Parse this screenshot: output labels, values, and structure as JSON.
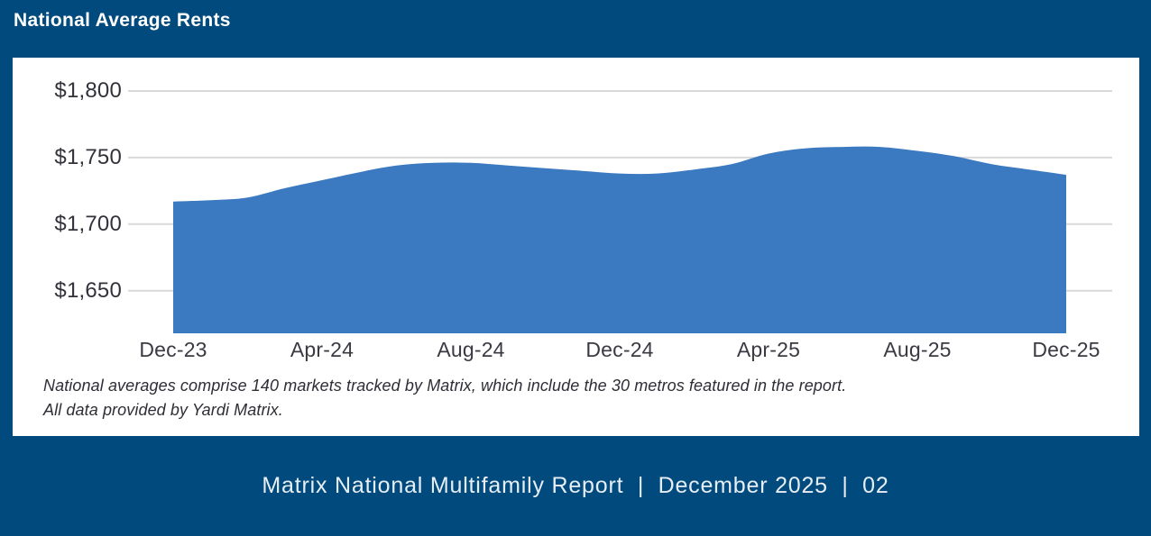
{
  "header": {
    "title": "National Average Rents"
  },
  "footer": {
    "text": "Matrix National Multifamily Report  |  December 2025  |  02"
  },
  "footnote": {
    "line1": "National averages comprise 140 markets tracked by Matrix, which include the 30 metros featured in the report.",
    "line2": "All data provided by Yardi Matrix."
  },
  "colors": {
    "navy": "#004a7d",
    "area_blue": "#3b7ac0",
    "gridline": "#d9d9d9",
    "axis_text": "#32323b",
    "footer_text": "#e8eef5"
  },
  "chart_data": {
    "type": "area",
    "title": "National Average Rents",
    "xlabel": "",
    "ylabel": "",
    "x": [
      "Dec-23",
      "Jan-24",
      "Feb-24",
      "Mar-24",
      "Apr-24",
      "May-24",
      "Jun-24",
      "Jul-24",
      "Aug-24",
      "Sep-24",
      "Oct-24",
      "Nov-24",
      "Dec-24",
      "Jan-25",
      "Feb-25",
      "Mar-25",
      "Apr-25",
      "May-25",
      "Jun-25",
      "Jul-25",
      "Aug-25",
      "Sep-25",
      "Oct-25",
      "Nov-25",
      "Dec-25"
    ],
    "series": [
      {
        "name": "National Average Rent ($)",
        "values": [
          1717,
          1718,
          1720,
          1727,
          1733,
          1739,
          1744,
          1746,
          1746,
          1744,
          1742,
          1740,
          1738,
          1738,
          1741,
          1745,
          1753,
          1757,
          1758,
          1758,
          1755,
          1751,
          1745,
          1741,
          1737
        ]
      }
    ],
    "xtick_labels": [
      "Dec-23",
      "Apr-24",
      "Aug-24",
      "Dec-24",
      "Apr-25",
      "Aug-25",
      "Dec-25"
    ],
    "yticks": [
      1800,
      1750,
      1700,
      1650
    ],
    "ytick_labels": [
      "$1,800",
      "$1,750",
      "$1,700",
      "$1,650"
    ],
    "ylim": [
      1618,
      1800
    ],
    "grid": "horizontal",
    "legend": "none",
    "color": "#3b7ac0"
  }
}
